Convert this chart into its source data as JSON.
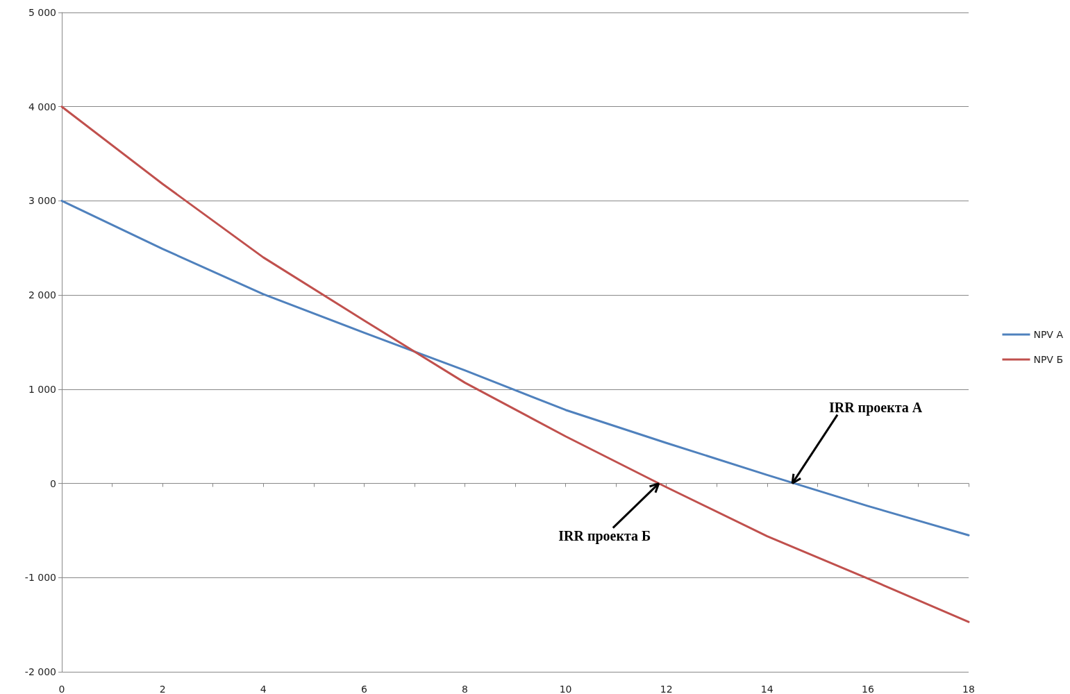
{
  "chart_data": {
    "type": "line",
    "x": [
      0,
      2,
      4,
      6,
      8,
      10,
      12,
      14,
      16,
      18
    ],
    "series": [
      {
        "name": "NPV A",
        "color": "#4f81bd",
        "values": [
          3000,
          2490,
          2010,
          1600,
          1200,
          780,
          430,
          90,
          -240,
          -550
        ]
      },
      {
        "name": "NPV Б",
        "color": "#c0504d",
        "values": [
          4000,
          3180,
          2400,
          1730,
          1070,
          500,
          -40,
          -560,
          -1010,
          -1470
        ]
      }
    ],
    "xlim": [
      0,
      18
    ],
    "xticks": [
      0,
      {
        "value": 1,
        "label": null
      },
      2,
      {
        "value": 3,
        "label": null
      },
      4,
      {
        "value": 5,
        "label": null
      },
      6,
      {
        "value": 7,
        "label": null
      },
      8,
      {
        "value": 9,
        "label": null
      },
      10,
      {
        "value": 11,
        "label": null
      },
      12,
      {
        "value": 13,
        "label": null
      },
      14,
      {
        "value": 15,
        "label": null
      },
      16,
      {
        "value": 17,
        "label": null
      },
      18
    ],
    "ylim": [
      -2000,
      5000
    ],
    "yticks": [
      {
        "value": -2000,
        "label": "-2 000"
      },
      {
        "value": -1000,
        "label": "-1 000"
      },
      0,
      {
        "value": 1000,
        "label": "1 000"
      },
      {
        "value": 2000,
        "label": "2 000"
      },
      {
        "value": 3000,
        "label": "3 000"
      },
      {
        "value": 4000,
        "label": "4 000"
      },
      {
        "value": 5000,
        "label": "5 000"
      }
    ],
    "grid": "y",
    "legend": "right",
    "marker": "none",
    "line_style": "solid",
    "annotations": [
      {
        "text": "IRR проекта А",
        "x": 14.5,
        "y": 0
      },
      {
        "text": "IRR проекта Б",
        "x": 11.85,
        "y": 0
      }
    ]
  }
}
